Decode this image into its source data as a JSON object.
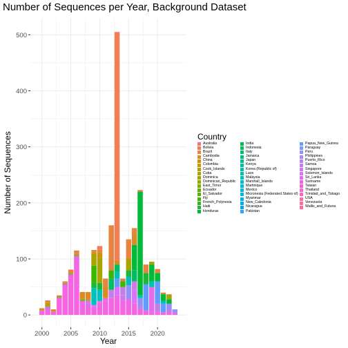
{
  "chart_data": {
    "type": "bar",
    "stacked": true,
    "title": "Number of Sequences per Year, Background Dataset",
    "xlabel": "Year",
    "ylabel": "Number of Sequences",
    "xlim": [
      1998,
      2025
    ],
    "ylim": [
      -22,
      530
    ],
    "x_ticks": [
      2000,
      2005,
      2010,
      2015,
      2020
    ],
    "y_ticks": [
      0,
      100,
      200,
      300,
      400,
      500
    ],
    "grid": true,
    "legend_title": "Country",
    "legend_position": "right",
    "countries": [
      {
        "name": "Australia",
        "color": "#F8766D"
      },
      {
        "name": "Bolivia",
        "color": "#F27E57"
      },
      {
        "name": "Brazil",
        "color": "#E8843F"
      },
      {
        "name": "Cambodia",
        "color": "#DC8A25"
      },
      {
        "name": "China",
        "color": "#D0900C"
      },
      {
        "name": "Colombia",
        "color": "#C49A00"
      },
      {
        "name": "Cook_Islands",
        "color": "#B79F00"
      },
      {
        "name": "Cuba",
        "color": "#A9A400"
      },
      {
        "name": "Dominica",
        "color": "#9AA800"
      },
      {
        "name": "Dominican_Republic",
        "color": "#8AAB00"
      },
      {
        "name": "East_Timor",
        "color": "#7AAE00"
      },
      {
        "name": "Ecuador",
        "color": "#67B000"
      },
      {
        "name": "El_Salvador",
        "color": "#52B300"
      },
      {
        "name": "Fiji",
        "color": "#3DB600"
      },
      {
        "name": "French_Polynesia",
        "color": "#2CB722"
      },
      {
        "name": "Haiti",
        "color": "#1BB936"
      },
      {
        "name": "Honduras",
        "color": "#00BA38"
      },
      {
        "name": "India",
        "color": "#00BB4E"
      },
      {
        "name": "Indonesia",
        "color": "#00BD60"
      },
      {
        "name": "Italy",
        "color": "#00BE70"
      },
      {
        "name": "Jamaica",
        "color": "#00BF7F"
      },
      {
        "name": "Japan",
        "color": "#00C08D"
      },
      {
        "name": "Kenya",
        "color": "#00C09A"
      },
      {
        "name": "Korea (Republic of)",
        "color": "#00C0A6"
      },
      {
        "name": "Laos",
        "color": "#00C0B2"
      },
      {
        "name": "Malaysia",
        "color": "#00BFBD"
      },
      {
        "name": "Marshall_Islands",
        "color": "#00BEC7"
      },
      {
        "name": "Martinique",
        "color": "#00BCD1"
      },
      {
        "name": "Mexico",
        "color": "#00B9DA"
      },
      {
        "name": "Micronesia (Federated States of)",
        "color": "#00B6E3"
      },
      {
        "name": "Myanmar",
        "color": "#00B2EA"
      },
      {
        "name": "New_Caledonia",
        "color": "#00ADF1"
      },
      {
        "name": "Nicaragua",
        "color": "#00A7F6"
      },
      {
        "name": "Pakistan",
        "color": "#35A2FA"
      },
      {
        "name": "Papua_New_Guinea",
        "color": "#619CFF"
      },
      {
        "name": "Paraguay",
        "color": "#7C96FE"
      },
      {
        "name": "Peru",
        "color": "#9390F9"
      },
      {
        "name": "Philippines",
        "color": "#A58AF3"
      },
      {
        "name": "Puerto_Rico",
        "color": "#B584EF"
      },
      {
        "name": "Samoa",
        "color": "#C37EEA"
      },
      {
        "name": "Singapore",
        "color": "#D078E6"
      },
      {
        "name": "Solomon_Islands",
        "color": "#DB72FB"
      },
      {
        "name": "Sri_Lanka",
        "color": "#E36BED"
      },
      {
        "name": "Suriname",
        "color": "#EA66DD"
      },
      {
        "name": "Taiwan",
        "color": "#F062CC"
      },
      {
        "name": "Thailand",
        "color": "#F564E3"
      },
      {
        "name": "Trinidad_and_Tobago",
        "color": "#F967BC"
      },
      {
        "name": "USA",
        "color": "#FC6AA8"
      },
      {
        "name": "Venezuela",
        "color": "#FD6E93"
      },
      {
        "name": "Wallis_and_Futuna",
        "color": "#FF6C91"
      }
    ],
    "years": [
      {
        "year": 2000,
        "segments": [
          [
            "Thailand",
            8
          ],
          [
            "Cambodia",
            2
          ],
          [
            "Colombia",
            2
          ]
        ]
      },
      {
        "year": 2001,
        "segments": [
          [
            "Thailand",
            14
          ],
          [
            "Brazil",
            4
          ],
          [
            "Colombia",
            7
          ],
          [
            "Mexico",
            1
          ]
        ]
      },
      {
        "year": 2002,
        "segments": [
          [
            "Thailand",
            6
          ],
          [
            "Cambodia",
            3
          ],
          [
            "Colombia",
            1
          ]
        ]
      },
      {
        "year": 2003,
        "segments": [
          [
            "Thailand",
            30
          ],
          [
            "Cambodia",
            4
          ],
          [
            "Mexico",
            1
          ]
        ]
      },
      {
        "year": 2004,
        "segments": [
          [
            "Thailand",
            55
          ],
          [
            "Brazil",
            3
          ],
          [
            "Colombia",
            1
          ],
          [
            "Indonesia",
            1
          ]
        ]
      },
      {
        "year": 2005,
        "segments": [
          [
            "Thailand",
            72
          ],
          [
            "Brazil",
            5
          ],
          [
            "Cambodia",
            3
          ],
          [
            "Indonesia",
            1
          ]
        ]
      },
      {
        "year": 2006,
        "segments": [
          [
            "Thailand",
            105
          ],
          [
            "Brazil",
            6
          ],
          [
            "Cambodia",
            3
          ],
          [
            "Indonesia",
            1
          ]
        ]
      },
      {
        "year": 2007,
        "segments": [
          [
            "Thailand",
            25
          ],
          [
            "Cambodia",
            12
          ],
          [
            "Cuba",
            3
          ],
          [
            "Indonesia",
            1
          ]
        ]
      },
      {
        "year": 2008,
        "segments": [
          [
            "Thailand",
            15
          ],
          [
            "Sri_Lanka",
            6
          ],
          [
            "Samoa",
            5
          ],
          [
            "Cambodia",
            13
          ],
          [
            "Cuba",
            2
          ]
        ]
      },
      {
        "year": 2009,
        "segments": [
          [
            "Thailand",
            14
          ],
          [
            "Solomon_Islands",
            4
          ],
          [
            "Malaysia",
            30
          ],
          [
            "Haiti",
            10
          ],
          [
            "Fiji",
            30
          ],
          [
            "Cuba",
            22
          ],
          [
            "Cambodia",
            3
          ],
          [
            "Brazil",
            3
          ]
        ]
      },
      {
        "year": 2010,
        "segments": [
          [
            "Thailand",
            22
          ],
          [
            "Solomon_Islands",
            3
          ],
          [
            "Malaysia",
            20
          ],
          [
            "Haiti",
            12
          ],
          [
            "Cuba",
            45
          ],
          [
            "China",
            10
          ],
          [
            "Bolivia",
            6
          ],
          [
            "Brazil",
            5
          ]
        ]
      },
      {
        "year": 2011,
        "segments": [
          [
            "Thailand",
            25
          ],
          [
            "Sri_Lanka",
            5
          ],
          [
            "Cambodia",
            20
          ],
          [
            "Brazil",
            15
          ]
        ]
      },
      {
        "year": 2012,
        "segments": [
          [
            "Thailand",
            30
          ],
          [
            "Samoa",
            15
          ],
          [
            "Indonesia",
            20
          ],
          [
            "Fiji",
            15
          ],
          [
            "Brazil",
            80
          ]
        ]
      },
      {
        "year": 2013,
        "segments": [
          [
            "Thailand",
            35
          ],
          [
            "Solomon_Islands",
            15
          ],
          [
            "Papua_New_Guinea",
            15
          ],
          [
            "Malaysia",
            12
          ],
          [
            "Indonesia",
            13
          ],
          [
            "Cambodia",
            8
          ],
          [
            "Bolivia",
            407
          ]
        ]
      },
      {
        "year": 2014,
        "segments": [
          [
            "Thailand",
            25
          ],
          [
            "Samoa",
            15
          ],
          [
            "Singapore",
            10
          ],
          [
            "Fiji",
            10
          ],
          [
            "Brazil",
            5
          ]
        ]
      },
      {
        "year": 2015,
        "segments": [
          [
            "Thailand",
            28
          ],
          [
            "Peru",
            25
          ],
          [
            "Malaysia",
            15
          ],
          [
            "Haiti",
            12
          ],
          [
            "Cuba",
            20
          ],
          [
            "Brazil",
            35
          ]
        ]
      },
      {
        "year": 2016,
        "segments": [
          [
            "Thailand",
            20
          ],
          [
            "Solomon_Islands",
            25
          ],
          [
            "Singapore",
            15
          ],
          [
            "Indonesia",
            20
          ],
          [
            "Honduras",
            45
          ],
          [
            "Cambodia",
            20
          ],
          [
            "Brazil",
            10
          ]
        ]
      },
      {
        "year": 2017,
        "segments": [
          [
            "Thailand",
            10
          ],
          [
            "Samoa",
            5
          ],
          [
            "Peru",
            15
          ],
          [
            "Laos",
            5
          ],
          [
            "Honduras",
            185
          ],
          [
            "Brazil",
            3
          ]
        ]
      },
      {
        "year": 2018,
        "segments": [
          [
            "Thailand",
            8
          ],
          [
            "Papua_New_Guinea",
            47
          ],
          [
            "Haiti",
            20
          ],
          [
            "Brazil",
            15
          ]
        ]
      },
      {
        "year": 2019,
        "segments": [
          [
            "Thailand",
            5
          ],
          [
            "Sri_Lanka",
            45
          ],
          [
            "Laos",
            10
          ],
          [
            "Honduras",
            30
          ],
          [
            "Cuba",
            5
          ]
        ]
      },
      {
        "year": 2020,
        "segments": [
          [
            "Thailand",
            5
          ],
          [
            "Samoa",
            15
          ],
          [
            "Papua_New_Guinea",
            40
          ],
          [
            "Honduras",
            15
          ],
          [
            "Brazil",
            7
          ]
        ]
      },
      {
        "year": 2021,
        "segments": [
          [
            "Thailand",
            5
          ],
          [
            "Papua_New_Guinea",
            15
          ],
          [
            "Malaysia",
            5
          ],
          [
            "Honduras",
            12
          ],
          [
            "Cambodia",
            3
          ]
        ]
      },
      {
        "year": 2022,
        "segments": [
          [
            "Thailand",
            5
          ],
          [
            "Samoa",
            5
          ],
          [
            "Peru",
            10
          ],
          [
            "Honduras",
            8
          ],
          [
            "Cuba",
            8
          ],
          [
            "Brazil",
            1
          ]
        ]
      },
      {
        "year": 2023,
        "segments": [
          [
            "Thailand",
            2
          ],
          [
            "Samoa",
            3
          ],
          [
            "Peru",
            5
          ]
        ]
      }
    ]
  }
}
